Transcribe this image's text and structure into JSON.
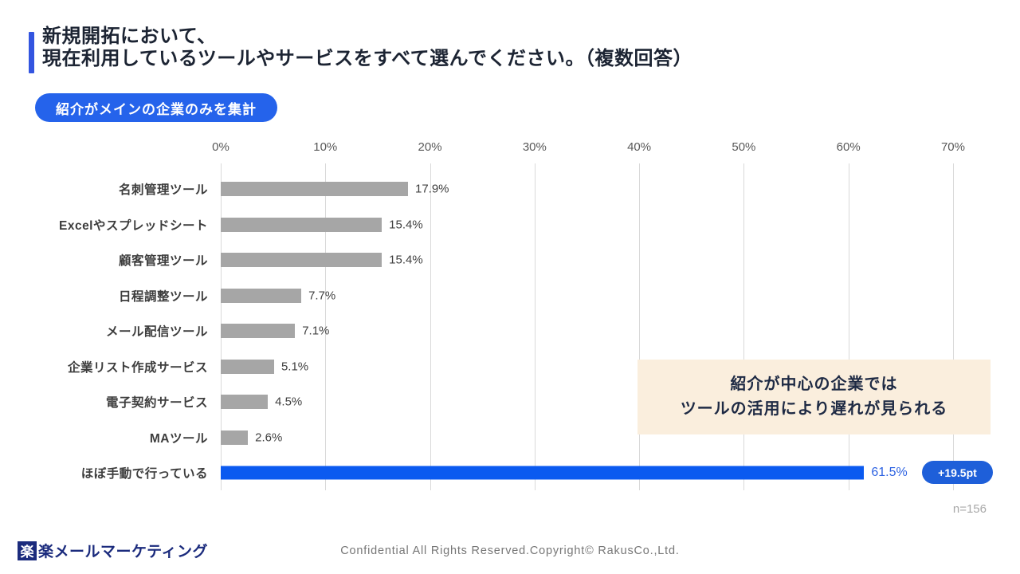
{
  "slide": {
    "title_line1": "新規開拓において、",
    "title_line2": "現在利用しているツールやサービスをすべて選んでください。（複数回答）",
    "filter_badge": "紹介がメインの企業のみを集計",
    "annotation_line1": "紹介が中心の企業では",
    "annotation_line2": "ツールの活用により遅れが見られる",
    "diff_badge": "+19.5pt",
    "sample_size": "n=156"
  },
  "chart_data": {
    "type": "bar",
    "orientation": "horizontal",
    "categories": [
      "名刺管理ツール",
      "Excelやスプレッドシート",
      "顧客管理ツール",
      "日程調整ツール",
      "メール配信ツール",
      "企業リスト作成サービス",
      "電子契約サービス",
      "MAツール",
      "ほぼ手動で行っている"
    ],
    "values": [
      17.9,
      15.4,
      15.4,
      7.7,
      7.1,
      5.1,
      4.5,
      2.6,
      61.5
    ],
    "value_labels": [
      "17.9%",
      "15.4%",
      "15.4%",
      "7.7%",
      "7.1%",
      "5.1%",
      "4.5%",
      "2.6%",
      "61.5%"
    ],
    "highlight_index": 8,
    "x_ticks": [
      "0%",
      "10%",
      "20%",
      "30%",
      "40%",
      "50%",
      "60%",
      "70%"
    ],
    "xlim": [
      0,
      70
    ],
    "grid": true,
    "legend": "none",
    "bar_color": "#a6a6a6",
    "highlight_color": "#0b5af0",
    "gridline_color": "#d9d9d9"
  },
  "footer": {
    "logo_square": "楽",
    "logo_text": "楽メールマーケティング",
    "copyright": "Confidential All Rights Reserved.Copyright© RakusCo.,Ltd."
  },
  "colors": {
    "accent_blue": "#3355e0",
    "badge_blue": "#2563eb",
    "bar_blue": "#0b5af0",
    "pill_blue": "#1e5fd9",
    "annotation_bg": "#faeedd",
    "title_navy": "#1c2433",
    "logo_navy": "#1b2b7d"
  }
}
